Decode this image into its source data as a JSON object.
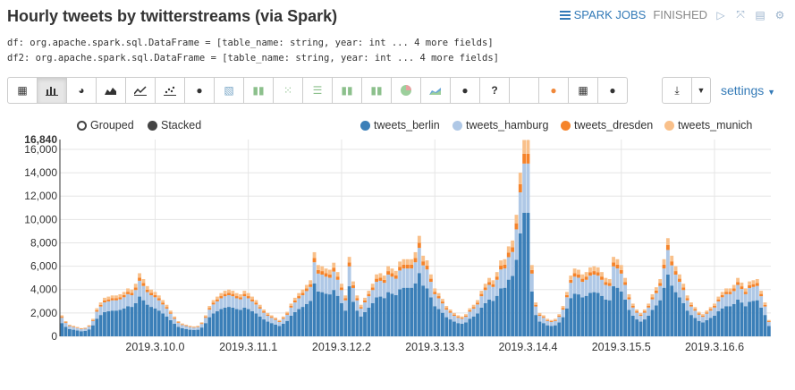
{
  "header": {
    "title": "Hourly tweets by twitterstreams (via Spark)",
    "spark_jobs_label": "SPARK JOBS",
    "status": "FINISHED"
  },
  "output_lines": [
    "df: org.apache.spark.sql.DataFrame = [table_name: string, year: int ... 4 more fields]",
    "df2: org.apache.spark.sql.DataFrame = [table_name: string, year: int ... 4 more fields]"
  ],
  "toolbar_icons": [
    "table-icon",
    "bar-chart-icon",
    "pie-chart-icon",
    "area-chart-icon",
    "line-chart-icon",
    "scatter-chart-icon",
    "globe-icon",
    "heatmap-icon",
    "bar-chart-alt-icon",
    "grid-icon",
    "lines-icon",
    "bar-chart-alt2-icon",
    "bar-chart-alt3-icon",
    "pie-chart-alt-icon",
    "area-chart-alt-icon",
    "globe-alt-icon",
    "help-icon",
    "blank-icon",
    "globe-orange-icon",
    "table-alt-icon",
    "globe-dark-icon"
  ],
  "settings_label": "settings",
  "mode": {
    "grouped": "Grouped",
    "stacked": "Stacked",
    "selected": "stacked"
  },
  "colors": {
    "tweets_berlin": "#3b7fb8",
    "tweets_hamburg": "#afc8e6",
    "tweets_dresden": "#f5832a",
    "tweets_munich": "#f9c08a"
  },
  "chart_data": {
    "type": "bar",
    "stacked": true,
    "ymax_label": "16,840",
    "ylim": [
      0,
      16840
    ],
    "yticks": [
      "0",
      "2,000",
      "4,000",
      "6,000",
      "8,000",
      "10,000",
      "12,000",
      "14,000",
      "16,000"
    ],
    "ytick_values": [
      0,
      2000,
      4000,
      6000,
      8000,
      10000,
      12000,
      14000,
      16000
    ],
    "xtick_labels": [
      "2019.3.10.0",
      "2019.3.11.1",
      "2019.3.12.2",
      "2019.3.13.3",
      "2019.3.14.4",
      "2019.3.15.5",
      "2019.3.16.6"
    ],
    "xtick_index": [
      24,
      48,
      72,
      96,
      120,
      144,
      168
    ],
    "legend_position": "top-right",
    "series_names": [
      "tweets_berlin",
      "tweets_hamburg",
      "tweets_dresden",
      "tweets_munich"
    ],
    "totals": [
      1800,
      1300,
      1000,
      900,
      800,
      700,
      750,
      950,
      1500,
      2400,
      2900,
      3300,
      3400,
      3500,
      3500,
      3600,
      3800,
      4100,
      4000,
      4500,
      5400,
      4900,
      4300,
      4000,
      3800,
      3500,
      3100,
      2700,
      2200,
      1700,
      1300,
      1100,
      1000,
      900,
      850,
      900,
      1200,
      1800,
      2600,
      3100,
      3400,
      3700,
      3900,
      4000,
      3900,
      3700,
      3600,
      3900,
      3700,
      3400,
      3100,
      2700,
      2300,
      2000,
      1800,
      1600,
      1400,
      1700,
      2100,
      2800,
      3300,
      3700,
      4000,
      4400,
      4800,
      7200,
      6100,
      6000,
      5800,
      5700,
      6300,
      5500,
      4500,
      3500,
      6800,
      4700,
      3500,
      2700,
      3300,
      3900,
      4500,
      5300,
      5400,
      5200,
      6000,
      5800,
      5600,
      6400,
      6600,
      6600,
      6600,
      7200,
      8600,
      6900,
      6500,
      5300,
      4100,
      3700,
      3200,
      2600,
      2300,
      2000,
      1800,
      1700,
      1900,
      2400,
      2700,
      3100,
      3900,
      4500,
      5000,
      4800,
      5500,
      6500,
      6600,
      7700,
      8200,
      10400,
      14000,
      16800,
      16800,
      6100,
      2900,
      2000,
      1800,
      1500,
      1400,
      1500,
      1900,
      2600,
      3800,
      5200,
      5800,
      5700,
      5300,
      5500,
      5900,
      6000,
      5900,
      5500,
      5000,
      4900,
      6800,
      6600,
      6100,
      5000,
      3600,
      2800,
      2300,
      2000,
      2300,
      2800,
      3600,
      4200,
      4900,
      6600,
      8400,
      6900,
      6000,
      5300,
      4500,
      3500,
      2900,
      2500,
      2100,
      1900,
      2200,
      2500,
      2800,
      3400,
      3800,
      4100,
      4100,
      4400,
      5000,
      4600,
      4100,
      4700,
      4800,
      4900,
      3900,
      2900,
      1400
    ],
    "share": {
      "tweets_berlin": 0.63,
      "tweets_hamburg": 0.25,
      "tweets_dresden": 0.05,
      "tweets_munich": 0.07
    }
  }
}
